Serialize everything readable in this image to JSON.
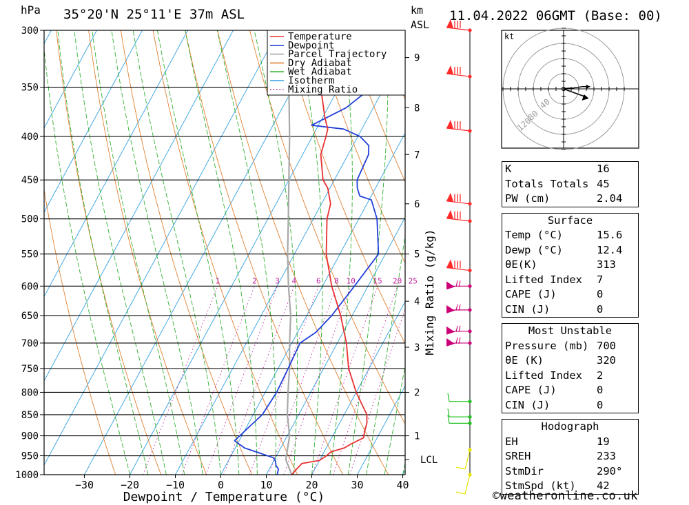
{
  "header": {
    "location": "35°20'N  25°11'E  37m  ASL",
    "datetime": "11.04.2022  06GMT  (Base: 00)",
    "pressure_unit": "hPa",
    "height_unit_km": "km",
    "height_unit_asl": "ASL"
  },
  "chart_data": {
    "type": "line",
    "title": "",
    "xlabel": "Dewpoint / Temperature (°C)",
    "ylabel": "hPa",
    "secondary_ylabel": "Mixing Ratio (g/kg)",
    "xlim": [
      -40,
      40
    ],
    "ylim": [
      1000,
      300
    ],
    "y_scale": "log",
    "x_ticks": [
      -30,
      -20,
      -10,
      0,
      10,
      20,
      30,
      40
    ],
    "y_ticks": [
      300,
      350,
      400,
      450,
      500,
      550,
      600,
      650,
      700,
      750,
      800,
      850,
      900,
      950,
      1000
    ],
    "height_ticks": [
      {
        "label": "9",
        "p": 323
      },
      {
        "label": "8",
        "p": 370
      },
      {
        "label": "7",
        "p": 420
      },
      {
        "label": "6",
        "p": 480
      },
      {
        "label": "5",
        "p": 550
      },
      {
        "label": "4",
        "p": 625
      },
      {
        "label": "3",
        "p": 708
      },
      {
        "label": "2",
        "p": 800
      },
      {
        "label": "1",
        "p": 900
      },
      {
        "label": "LCL",
        "p": 960
      }
    ],
    "mixing_ratio_labels": [
      "1",
      "2",
      "3",
      "4",
      "6",
      "8",
      "10",
      "15",
      "20",
      "25"
    ],
    "mixing_ratio_values": [
      1,
      2,
      3,
      4,
      6,
      8,
      10,
      15,
      20,
      25
    ],
    "legend": [
      "Temperature",
      "Dewpoint",
      "Parcel Trajectory",
      "Dry Adiabat",
      "Wet Adiabat",
      "Isotherm",
      "Mixing Ratio"
    ],
    "legend_placement": "top-right",
    "series": [
      {
        "name": "Temperature",
        "color": "#e83030",
        "points": [
          [
            1000,
            15.6
          ],
          [
            985,
            16
          ],
          [
            970,
            16.5
          ],
          [
            962,
            20
          ],
          [
            950,
            21
          ],
          [
            940,
            21.5
          ],
          [
            930,
            24
          ],
          [
            920,
            25
          ],
          [
            905,
            27
          ],
          [
            890,
            26.5
          ],
          [
            870,
            26
          ],
          [
            850,
            25
          ],
          [
            800,
            20
          ],
          [
            750,
            15.5
          ],
          [
            700,
            12
          ],
          [
            650,
            7.5
          ],
          [
            600,
            2
          ],
          [
            550,
            -3
          ],
          [
            500,
            -7
          ],
          [
            480,
            -8
          ],
          [
            460,
            -10.5
          ],
          [
            450,
            -12.5
          ],
          [
            420,
            -16
          ],
          [
            400,
            -17
          ],
          [
            392,
            -17.5
          ],
          [
            380,
            -19.5
          ],
          [
            350,
            -24
          ],
          [
            320,
            -29
          ],
          [
            300,
            -32
          ]
        ]
      },
      {
        "name": "Dewpoint",
        "color": "#2040d8",
        "points": [
          [
            1000,
            12.4
          ],
          [
            985,
            12
          ],
          [
            975,
            11
          ],
          [
            965,
            10.5
          ],
          [
            955,
            9.5
          ],
          [
            930,
            2
          ],
          [
            912,
            -1
          ],
          [
            880,
            0.5
          ],
          [
            850,
            2
          ],
          [
            800,
            2.5
          ],
          [
            750,
            2.2
          ],
          [
            700,
            1.8
          ],
          [
            680,
            4
          ],
          [
            650,
            5.5
          ],
          [
            600,
            7
          ],
          [
            550,
            8.5
          ],
          [
            500,
            4
          ],
          [
            475,
            0.5
          ],
          [
            470,
            -2.5
          ],
          [
            460,
            -4
          ],
          [
            450,
            -5
          ],
          [
            420,
            -5.5
          ],
          [
            410,
            -6.5
          ],
          [
            400,
            -9.5
          ],
          [
            392,
            -14
          ],
          [
            388,
            -21.5
          ],
          [
            370,
            -16
          ],
          [
            340,
            -11
          ],
          [
            322,
            -9
          ],
          [
            315,
            -13
          ],
          [
            300,
            -31
          ]
        ]
      },
      {
        "name": "Parcel Trajectory",
        "color": "#a8a8a8",
        "points": [
          [
            1000,
            15.6
          ],
          [
            960,
            12.5
          ],
          [
            900,
            10.5
          ],
          [
            850,
            7.5
          ],
          [
            800,
            5
          ],
          [
            750,
            2.5
          ],
          [
            700,
            -0.5
          ],
          [
            650,
            -3.5
          ],
          [
            600,
            -7.5
          ],
          [
            550,
            -11.5
          ],
          [
            500,
            -15.5
          ],
          [
            450,
            -20
          ],
          [
            400,
            -25
          ],
          [
            350,
            -31
          ],
          [
            300,
            -38
          ]
        ]
      }
    ],
    "wind_barbs": [
      {
        "p": 300,
        "color": "#ff2a2a"
      },
      {
        "p": 340,
        "color": "#ff2a2a"
      },
      {
        "p": 394,
        "color": "#ff2a2a"
      },
      {
        "p": 480,
        "color": "#ff2a2a"
      },
      {
        "p": 503,
        "color": "#ff2a2a"
      },
      {
        "p": 575,
        "color": "#ff2a2a"
      },
      {
        "p": 600,
        "color": "#cc0077"
      },
      {
        "p": 640,
        "color": "#cc0077"
      },
      {
        "p": 678,
        "color": "#cc0077"
      },
      {
        "p": 700,
        "color": "#cc0077"
      },
      {
        "p": 820,
        "color": "#20c020"
      },
      {
        "p": 855,
        "color": "#20c020"
      },
      {
        "p": 870,
        "color": "#20c020"
      },
      {
        "p": 935,
        "color": "#e6e600"
      },
      {
        "p": 1000,
        "color": "#e6e600"
      }
    ],
    "hodograph": {
      "unit": "kt",
      "ring_labels": [
        "40",
        "80",
        "120"
      ],
      "points": [
        [
          0,
          0
        ],
        [
          6,
          1
        ],
        [
          12,
          1
        ],
        [
          18,
          2
        ],
        [
          25,
          3
        ],
        [
          35,
          3
        ]
      ],
      "storm_motion": {
        "dir_deg": 290,
        "speed_kt": 42
      }
    }
  },
  "indices": {
    "basic": [
      {
        "label": "K",
        "value": "16"
      },
      {
        "label": "Totals Totals",
        "value": "45"
      },
      {
        "label": "PW (cm)",
        "value": "2.04"
      }
    ],
    "surface": {
      "title": "Surface",
      "rows": [
        {
          "label": "Temp (°C)",
          "value": "15.6"
        },
        {
          "label": "Dewp (°C)",
          "value": "12.4"
        },
        {
          "label": "θE(K)",
          "value": "313"
        },
        {
          "label": "Lifted Index",
          "value": "7"
        },
        {
          "label": "CAPE (J)",
          "value": "0"
        },
        {
          "label": "CIN (J)",
          "value": "0"
        }
      ]
    },
    "most_unstable": {
      "title": "Most Unstable",
      "rows": [
        {
          "label": "Pressure (mb)",
          "value": "700"
        },
        {
          "label": "θE (K)",
          "value": "320"
        },
        {
          "label": "Lifted Index",
          "value": "2"
        },
        {
          "label": "CAPE (J)",
          "value": "0"
        },
        {
          "label": "CIN (J)",
          "value": "0"
        }
      ]
    },
    "hodograph": {
      "title": "Hodograph",
      "rows": [
        {
          "label": "EH",
          "value": "19"
        },
        {
          "label": "SREH",
          "value": "233"
        },
        {
          "label": "StmDir",
          "value": "290°"
        },
        {
          "label": "StmSpd (kt)",
          "value": "42"
        }
      ]
    }
  },
  "copyright": "©weatheronline.co.uk",
  "colors": {
    "temperature": "#e83030",
    "dewpoint": "#2040d8",
    "parcel": "#a8a8a8",
    "dry_adiabat": "#e08030",
    "wet_adiabat": "#30b030",
    "isotherm": "#30a0e0",
    "mixing_ratio": "#c020a0"
  }
}
